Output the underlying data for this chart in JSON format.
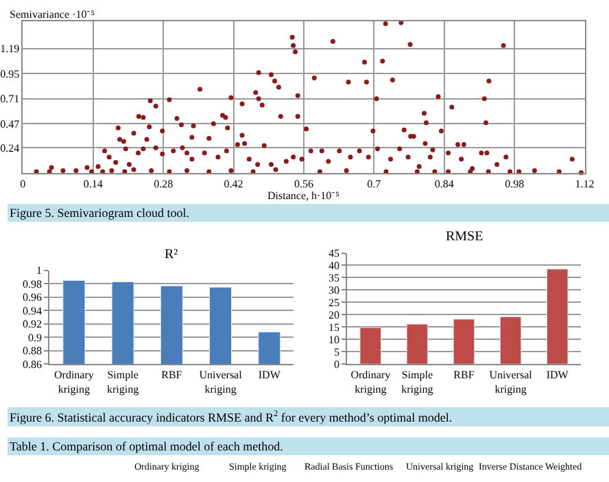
{
  "chart_data": [
    {
      "type": "scatter",
      "xlabel": "Distance, h·10⁻⁵",
      "ylabel": "Semivariance ·10⁻⁵",
      "color": "#8b1a1a",
      "marker": "circle",
      "grid": true,
      "x": [
        0.723,
        0.754,
        0.537,
        0.539,
        0.543,
        0.618,
        0.772,
        0.958,
        0.681,
        0.717,
        0.47,
        0.495,
        0.502,
        0.51,
        0.581,
        0.649,
        0.685,
        0.737,
        0.929,
        0.353,
        0.464,
        0.47,
        0.477,
        0.415,
        0.437,
        0.548,
        0.705,
        0.828,
        0.92,
        0.254,
        0.265,
        0.292,
        0.231,
        0.24,
        0.307,
        0.398,
        0.404,
        0.514,
        0.548,
        0.8,
        0.804,
        0.923,
        0.855,
        0.316,
        0.34,
        0.38,
        0.408,
        0.565,
        0.698,
        0.76,
        0.773,
        0.779,
        0.834,
        0.19,
        0.221,
        0.252,
        0.278,
        0.337,
        0.371,
        0.437,
        0.802,
        0.817,
        0.867,
        0.879,
        0.925,
        0.193,
        0.201,
        0.247,
        0.163,
        0.172,
        0.205,
        0.23,
        0.24,
        0.265,
        0.278,
        0.3,
        0.318,
        0.327,
        0.337,
        0.362,
        0.389,
        0.406,
        0.428,
        0.442,
        0.451,
        0.468,
        0.481,
        0.495,
        0.525,
        0.539,
        0.556,
        0.574,
        0.596,
        0.609,
        0.631,
        0.653,
        0.671,
        0.689,
        0.707,
        0.733,
        0.751,
        0.768,
        0.79,
        0.812,
        0.848,
        0.874,
        0.896,
        0.914,
        0.945,
        0.963,
        0.989,
        1.02,
        1.069,
        1.095,
        1.113,
        0.027,
        0.053,
        0.08,
        0.106,
        0.128,
        0.137,
        0.15,
        0.159,
        0.177,
        0.203,
        0.221,
        0.256,
        0.292,
        0.327,
        0.371,
        0.415,
        0.459,
        0.504,
        0.592,
        0.645,
        0.724,
        0.786,
        0.821,
        0.848,
        0.892,
        0.928,
        0.971,
        0.057,
        0.185,
        0.212
      ],
      "values": [
        1.43,
        1.44,
        1.3,
        1.22,
        1.16,
        1.26,
        1.23,
        1.22,
        1.06,
        1.07,
        0.96,
        0.94,
        0.88,
        0.82,
        0.91,
        0.87,
        0.87,
        0.89,
        0.88,
        0.8,
        0.77,
        0.71,
        0.65,
        0.72,
        0.66,
        0.74,
        0.71,
        0.73,
        0.71,
        0.69,
        0.64,
        0.7,
        0.54,
        0.53,
        0.52,
        0.55,
        0.53,
        0.54,
        0.54,
        0.57,
        0.48,
        0.48,
        0.63,
        0.46,
        0.45,
        0.47,
        0.43,
        0.42,
        0.4,
        0.41,
        0.35,
        0.35,
        0.4,
        0.43,
        0.38,
        0.44,
        0.4,
        0.34,
        0.33,
        0.36,
        0.28,
        0.22,
        0.27,
        0.27,
        0.19,
        0.32,
        0.3,
        0.32,
        0.21,
        0.15,
        0.23,
        0.19,
        0.23,
        0.24,
        0.18,
        0.21,
        0.24,
        0.19,
        0.13,
        0.19,
        0.15,
        0.21,
        0.27,
        0.28,
        0.13,
        0.08,
        0.26,
        0.08,
        0.11,
        0.15,
        0.13,
        0.21,
        0.21,
        0.11,
        0.21,
        0.15,
        0.21,
        0.15,
        0.23,
        0.13,
        0.23,
        0.15,
        0.06,
        0.15,
        0.19,
        0.13,
        0.04,
        0.19,
        0.08,
        0.15,
        0.01,
        0.02,
        0.01,
        0.13,
        0.0,
        0.01,
        0.01,
        0.02,
        0.02,
        0.05,
        0.01,
        0.06,
        0.01,
        0.02,
        0.01,
        0.03,
        0.02,
        0.01,
        0.02,
        0.01,
        0.02,
        0.01,
        0.03,
        0.01,
        0.02,
        0.01,
        0.01,
        0.01,
        0.01,
        0.01,
        0.01,
        0.01,
        0.05,
        0.1,
        0.08
      ],
      "xlim": [
        0,
        1.12
      ],
      "xticks": [
        0,
        0.14,
        0.28,
        0.42,
        0.56,
        0.7,
        0.84,
        0.98,
        1.12
      ],
      "ylim": [
        0,
        1.45
      ],
      "yticks": [
        0.24,
        0.47,
        0.71,
        0.95,
        1.19
      ],
      "annotations": [
        "Figure 5. Semivariogram cloud tool."
      ]
    },
    {
      "type": "bar",
      "title": "R²",
      "color": "#4a7ebb",
      "grid": "y",
      "categories": [
        "Ordinary kriging",
        "Simple kriging",
        "RBF",
        "Universal kriging",
        "IDW"
      ],
      "values": [
        0.985,
        0.983,
        0.977,
        0.975,
        0.908
      ],
      "ylim": [
        0.86,
        1
      ],
      "yticks": [
        0.86,
        0.88,
        0.9,
        0.92,
        0.94,
        0.96,
        0.98,
        1
      ],
      "annotations": [
        "Figure 6. Statistical accuracy indicators RMSE and R$^{2}$ for every method’s optimal model.",
        "Table 1. Comparison of optimal model of each method."
      ]
    },
    {
      "type": "bar",
      "title": "RMSE",
      "color": "#be4b48",
      "grid": "y",
      "categories": [
        "Ordinary kriging",
        "Simple kriging",
        "RBF",
        "Universal kriging",
        "IDW"
      ],
      "values": [
        14.8,
        16.2,
        18.2,
        19.2,
        38.5
      ],
      "ylim": [
        0,
        45
      ],
      "yticks": [
        0,
        5,
        10,
        15,
        20,
        25,
        30,
        35,
        40,
        45
      ],
      "annotations": [
        "Ordinary kriging",
        "Simple kriging",
        "Radial Basis Functions",
        "Universal kriging",
        "Inverse Distance Weighted"
      ]
    }
  ]
}
